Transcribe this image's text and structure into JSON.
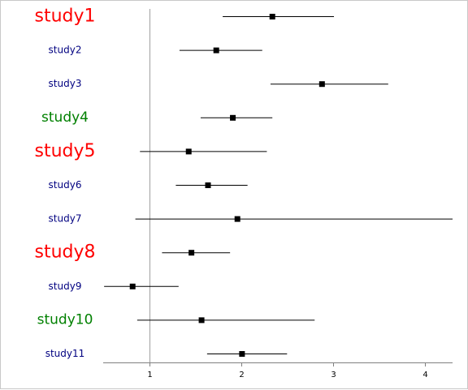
{
  "chart_data": {
    "type": "forest",
    "title": "",
    "xlabel": "",
    "ylabel": "",
    "xlim": [
      0.5,
      4.3
    ],
    "reference_line": 1,
    "x_ticks": [
      1,
      2,
      3,
      4
    ],
    "grid": false,
    "marker": "square",
    "studies": [
      {
        "label": "study1",
        "estimate": 2.34,
        "lower": 1.8,
        "upper": 3.01,
        "color": "#ff0000",
        "size": "large"
      },
      {
        "label": "study2",
        "estimate": 1.73,
        "lower": 1.33,
        "upper": 2.23,
        "color": "#000080",
        "size": "small"
      },
      {
        "label": "study3",
        "estimate": 2.88,
        "lower": 2.32,
        "upper": 3.6,
        "color": "#000080",
        "size": "small"
      },
      {
        "label": "study4",
        "estimate": 1.91,
        "lower": 1.56,
        "upper": 2.34,
        "color": "#008000",
        "size": "medium"
      },
      {
        "label": "study5",
        "estimate": 1.43,
        "lower": 0.9,
        "upper": 2.28,
        "color": "#ff0000",
        "size": "large"
      },
      {
        "label": "study6",
        "estimate": 1.64,
        "lower": 1.29,
        "upper": 2.07,
        "color": "#000080",
        "size": "small"
      },
      {
        "label": "study7",
        "estimate": 1.96,
        "lower": 0.85,
        "upper": 4.3,
        "color": "#000080",
        "size": "small"
      },
      {
        "label": "study8",
        "estimate": 1.46,
        "lower": 1.14,
        "upper": 1.88,
        "color": "#ff0000",
        "size": "large"
      },
      {
        "label": "study9",
        "estimate": 0.82,
        "lower": 0.51,
        "upper": 1.32,
        "color": "#000080",
        "size": "small"
      },
      {
        "label": "study10",
        "estimate": 1.57,
        "lower": 0.87,
        "upper": 2.8,
        "color": "#008000",
        "size": "medium"
      },
      {
        "label": "study11",
        "estimate": 2.01,
        "lower": 1.63,
        "upper": 2.5,
        "color": "#000080",
        "size": "small"
      }
    ]
  }
}
